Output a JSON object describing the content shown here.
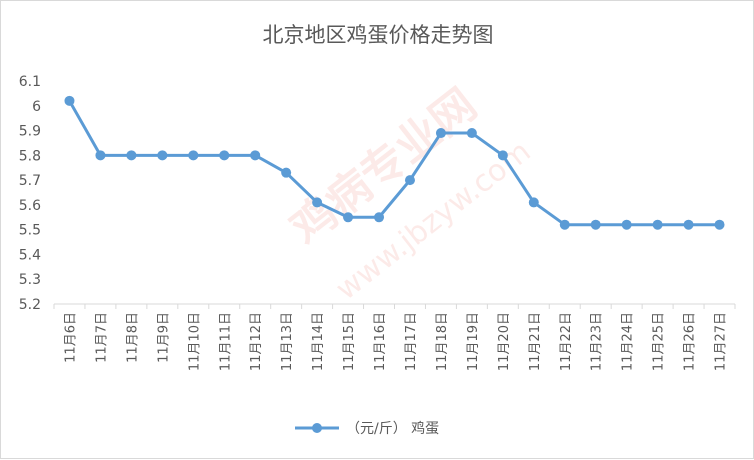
{
  "chart_data": {
    "type": "line",
    "title": "北京地区鸡蛋价格走势图",
    "xlabel": "",
    "ylabel": "",
    "categories": [
      "11月6日",
      "11月7日",
      "11月8日",
      "11月9日",
      "11月10日",
      "11月11日",
      "11月12日",
      "11月13日",
      "11月14日",
      "11月15日",
      "11月16日",
      "11月17日",
      "11月18日",
      "11月19日",
      "11月20日",
      "11月21日",
      "11月22日",
      "11月23日",
      "11月24日",
      "11月25日",
      "11月26日",
      "11月27日"
    ],
    "series": [
      {
        "name": "（元/斤） 鸡蛋",
        "values": [
          6.02,
          5.8,
          5.8,
          5.8,
          5.8,
          5.8,
          5.8,
          5.73,
          5.61,
          5.55,
          5.55,
          5.7,
          5.89,
          5.89,
          5.8,
          5.61,
          5.52,
          5.52,
          5.52,
          5.52,
          5.52,
          5.52
        ],
        "color": "#5b9bd5"
      }
    ],
    "ylim": [
      5.2,
      6.1
    ],
    "yticks": [
      "6.1",
      "6",
      "5.9",
      "5.8",
      "5.7",
      "5.6",
      "5.5",
      "5.4",
      "5.3",
      "5.2"
    ],
    "grid": false,
    "legend": "bottom"
  },
  "watermark": {
    "text_cn": "鸡病专业网",
    "text_url": "www.jbzyw.com"
  }
}
